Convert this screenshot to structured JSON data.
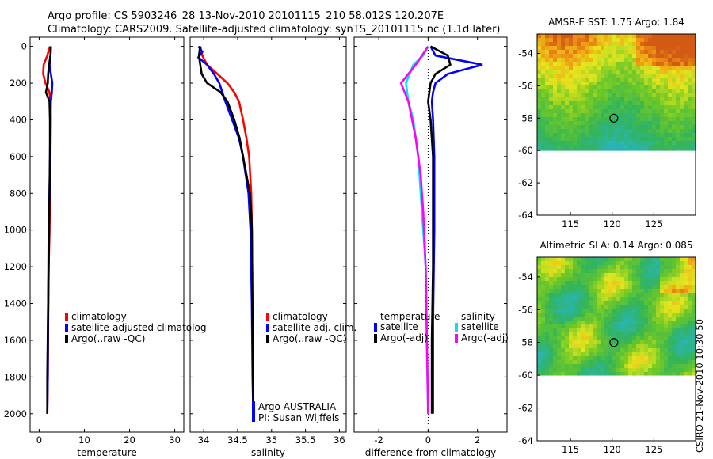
{
  "header": {
    "line1": "Argo profile: CS 5903246_28 13-Nov-2010 20101115_210 58.012S 120.207E",
    "line2": "Climatology: CARS2009. Satellite-adjusted climatology: synTS_20101115.nc (1.1d later)"
  },
  "colors": {
    "red": "#ff0000",
    "blue": "#0000ff",
    "black": "#000000",
    "cyan": "#00e5ee",
    "magenta": "#ff00ff"
  },
  "chart_data": [
    {
      "type": "line",
      "name": "temperature-profile",
      "xlabel": "temperature",
      "ylabel": "",
      "xlim": [
        -2,
        32
      ],
      "ylim": [
        2100,
        -50
      ],
      "xticks": [
        0,
        10,
        20,
        30
      ],
      "yticks": [
        0,
        200,
        400,
        600,
        800,
        1000,
        1200,
        1400,
        1600,
        1800,
        2000
      ],
      "legend": [
        "climatology",
        "satellite-adjusted climatolog",
        "Argo(..raw -QC)"
      ],
      "series": [
        {
          "name": "climatology",
          "color": "red",
          "x": [
            2.4,
            1.8,
            1.0,
            0.9,
            1.4,
            2.3,
            2.5,
            2.6,
            2.5,
            2.4,
            2.3,
            2.1,
            2.0,
            1.9,
            1.8
          ],
          "y": [
            0,
            50,
            100,
            150,
            200,
            250,
            300,
            400,
            600,
            800,
            1000,
            1200,
            1500,
            1800,
            2000
          ]
        },
        {
          "name": "satellite",
          "color": "blue",
          "x": [
            2.6,
            2.5,
            2.3,
            2.6,
            2.9,
            2.8,
            2.6,
            2.5,
            2.4,
            2.3,
            2.1,
            2.0,
            1.9,
            1.8
          ],
          "y": [
            0,
            50,
            100,
            150,
            200,
            250,
            300,
            400,
            600,
            800,
            1000,
            1400,
            1800,
            2000
          ]
        },
        {
          "name": "argo",
          "color": "black",
          "x": [
            2.6,
            2.5,
            2.2,
            2.0,
            1.9,
            1.5,
            2.3,
            2.4,
            2.4,
            2.3,
            2.2,
            2.0,
            1.8,
            1.8
          ],
          "y": [
            0,
            50,
            100,
            150,
            200,
            250,
            300,
            400,
            600,
            800,
            1000,
            1400,
            1800,
            2000
          ]
        }
      ]
    },
    {
      "type": "line",
      "name": "salinity-profile",
      "xlabel": "salinity",
      "xlim": [
        33.8,
        36.1
      ],
      "ylim": [
        2100,
        -50
      ],
      "xticks": [
        34,
        34.5,
        35,
        35.5,
        36
      ],
      "legend": [
        "climatology",
        "satellite adj. clim.",
        "Argo(..raw -QC)"
      ],
      "annotations": [
        "Argo AUSTRALIA",
        "PI: Susan Wijffels"
      ],
      "series": [
        {
          "name": "climatology",
          "color": "red",
          "x": [
            33.95,
            33.98,
            34.05,
            34.2,
            34.35,
            34.45,
            34.52,
            34.58,
            34.63,
            34.67,
            34.7,
            34.71,
            34.72,
            34.73
          ],
          "y": [
            0,
            50,
            100,
            150,
            200,
            250,
            300,
            400,
            500,
            600,
            800,
            1000,
            1500,
            2000
          ]
        },
        {
          "name": "satellite",
          "color": "blue",
          "x": [
            33.92,
            33.98,
            33.92,
            34.05,
            34.15,
            34.23,
            34.32,
            34.42,
            34.52,
            34.58,
            34.62,
            34.66,
            34.69,
            34.71,
            34.72,
            34.73
          ],
          "y": [
            0,
            30,
            60,
            100,
            150,
            200,
            300,
            400,
            500,
            600,
            700,
            800,
            1000,
            1400,
            1800,
            2000
          ]
        },
        {
          "name": "argo",
          "color": "black",
          "x": [
            33.95,
            33.93,
            33.95,
            33.97,
            34.05,
            34.25,
            34.35,
            34.45,
            34.53,
            34.58,
            34.63,
            34.68,
            34.7,
            34.71,
            34.72,
            34.73
          ],
          "y": [
            0,
            50,
            100,
            150,
            200,
            250,
            300,
            400,
            500,
            600,
            700,
            800,
            900,
            1000,
            1500,
            2000
          ]
        }
      ]
    },
    {
      "type": "line",
      "name": "difference-profile",
      "xlabel": "difference from climatology",
      "xlim": [
        -3,
        3.2
      ],
      "ylim": [
        2100,
        -50
      ],
      "xticks": [
        -2,
        0,
        2
      ],
      "legend_groups": [
        {
          "title": "temperature",
          "items": [
            "satellite",
            "Argo(-adj)"
          ]
        },
        {
          "title": "salinity",
          "items": [
            "satellite",
            "Argo(-adj)"
          ]
        }
      ],
      "series": [
        {
          "name": "temp-satellite",
          "color": "blue",
          "x": [
            0.1,
            0.3,
            2.2,
            0.8,
            0.3,
            0.2,
            0.15,
            0.2,
            0.25,
            0.25,
            0.2,
            0.2
          ],
          "y": [
            0,
            50,
            100,
            150,
            200,
            250,
            300,
            400,
            600,
            1000,
            1500,
            2000
          ]
        },
        {
          "name": "temp-argo",
          "color": "black",
          "x": [
            0.1,
            0.8,
            0.9,
            0.3,
            0.1,
            0.0,
            0.1,
            0.2,
            0.2,
            0.2,
            0.15,
            0.15
          ],
          "y": [
            0,
            50,
            100,
            150,
            200,
            300,
            400,
            600,
            800,
            1200,
            1600,
            2000
          ]
        },
        {
          "name": "sal-satellite",
          "color": "cyan",
          "x": [
            0.0,
            -0.2,
            -0.6,
            -0.9,
            -0.8,
            -0.6,
            -0.4,
            -0.3,
            -0.2,
            -0.1,
            -0.05,
            0.0
          ],
          "y": [
            0,
            50,
            100,
            200,
            300,
            400,
            600,
            800,
            1000,
            1200,
            1600,
            2000
          ]
        },
        {
          "name": "sal-argo",
          "color": "magenta",
          "x": [
            0.0,
            -0.5,
            -1.1,
            -0.8,
            -0.5,
            -0.3,
            -0.2,
            -0.1,
            -0.05,
            0.0
          ],
          "y": [
            0,
            100,
            200,
            300,
            500,
            700,
            900,
            1200,
            1600,
            2000
          ]
        }
      ]
    },
    {
      "type": "heatmap",
      "name": "amsr-sst-map",
      "title": "AMSR-E SST: 1.75 Argo: 1.84",
      "xlim": [
        111,
        130
      ],
      "ylim": [
        -64,
        -52.8
      ],
      "xticks": [
        115,
        120,
        125
      ],
      "yticks": [
        -54,
        -56,
        -58,
        -60,
        -62,
        -64
      ],
      "marker": {
        "lon": 120.2,
        "lat": -58.0
      }
    },
    {
      "type": "heatmap",
      "name": "altimetric-sla-map",
      "title": "Altimetric SLA: 0.14 Argo: 0.085",
      "xlim": [
        111,
        130
      ],
      "ylim": [
        -64,
        -52.8
      ],
      "xticks": [
        115,
        120,
        125
      ],
      "yticks": [
        -54,
        -56,
        -58,
        -60,
        -62,
        -64
      ],
      "marker": {
        "lon": 120.2,
        "lat": -58.0
      }
    }
  ],
  "footer": {
    "stamp": "CSIRO 21-Nov-2010 10:30:50"
  }
}
